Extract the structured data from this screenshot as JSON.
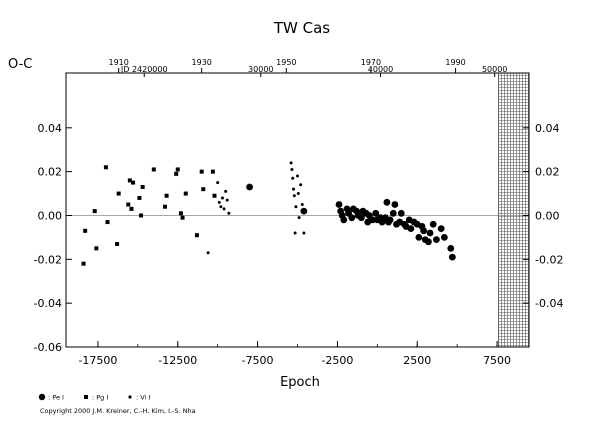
{
  "chart_data": {
    "type": "scatter",
    "title": "TW Cas",
    "ylabel": "O-C",
    "xlabel": "Epoch",
    "xlim": [
      -19500,
      9500
    ],
    "ylim": [
      -0.06,
      0.065
    ],
    "right_ylim": [
      -0.04,
      0.04
    ],
    "x_ticks": [
      -17500,
      -12500,
      -7500,
      -2500,
      2500,
      7500
    ],
    "x_tick_labels": [
      "-17500",
      "-12500",
      "-7500",
      "-2500",
      "2500",
      "7500"
    ],
    "y_ticks": [
      -0.06,
      -0.04,
      -0.02,
      0.0,
      0.02,
      0.04
    ],
    "y_tick_labels": [
      "-0.06",
      "-0.04",
      "-0.02",
      "0.00",
      "0.02",
      "0.04"
    ],
    "right_y_ticks": [
      -0.04,
      -0.02,
      0.0,
      0.02,
      0.04
    ],
    "right_y_tick_labels": [
      "-0.04",
      "-0.02",
      "0.00",
      "0.02",
      "0.04"
    ],
    "top_year_ticks": [
      {
        "label": "1910",
        "epoch": -16200
      },
      {
        "label": "1930",
        "epoch": -11000
      },
      {
        "label": "1950",
        "epoch": -5700
      },
      {
        "label": "1970",
        "epoch": -400
      },
      {
        "label": "1990",
        "epoch": 4900
      }
    ],
    "jd_labels": [
      {
        "label": "JD 2420000",
        "epoch": -14600
      },
      {
        "label": "30000",
        "epoch": -7300
      },
      {
        "label": "40000",
        "epoch": 200
      },
      {
        "label": "50000",
        "epoch": 7350
      }
    ],
    "hatched_from_epoch": 7600,
    "zero_line": 0.0,
    "series": [
      {
        "name": "Pe",
        "marker": "circle-large",
        "points": [
          [
            -8000,
            0.013
          ],
          [
            -4600,
            0.002
          ],
          [
            -2400,
            0.005
          ],
          [
            -2300,
            0.002
          ],
          [
            -2200,
            0.0
          ],
          [
            -2100,
            -0.002
          ],
          [
            -1900,
            0.003
          ],
          [
            -1800,
            0.001
          ],
          [
            -1600,
            -0.001
          ],
          [
            -1500,
            0.003
          ],
          [
            -1300,
            0.002
          ],
          [
            -1200,
            0.0
          ],
          [
            -1000,
            -0.001
          ],
          [
            -900,
            0.002
          ],
          [
            -700,
            0.001
          ],
          [
            -600,
            -0.003
          ],
          [
            -500,
            0.0
          ],
          [
            -300,
            -0.002
          ],
          [
            -100,
            0.001
          ],
          [
            0,
            -0.002
          ],
          [
            200,
            -0.001
          ],
          [
            300,
            -0.003
          ],
          [
            500,
            -0.001
          ],
          [
            600,
            0.006
          ],
          [
            700,
            -0.003
          ],
          [
            800,
            -0.002
          ],
          [
            1000,
            0.001
          ],
          [
            1100,
            0.005
          ],
          [
            1200,
            -0.004
          ],
          [
            1400,
            -0.003
          ],
          [
            1500,
            0.001
          ],
          [
            1700,
            -0.004
          ],
          [
            1800,
            -0.005
          ],
          [
            2000,
            -0.002
          ],
          [
            2100,
            -0.006
          ],
          [
            2300,
            -0.003
          ],
          [
            2500,
            -0.004
          ],
          [
            2600,
            -0.01
          ],
          [
            2800,
            -0.005
          ],
          [
            2900,
            -0.007
          ],
          [
            3000,
            -0.011
          ],
          [
            3200,
            -0.012
          ],
          [
            3300,
            -0.008
          ],
          [
            3500,
            -0.004
          ],
          [
            3700,
            -0.011
          ],
          [
            4000,
            -0.006
          ],
          [
            4200,
            -0.01
          ],
          [
            4600,
            -0.015
          ],
          [
            4700,
            -0.019
          ]
        ]
      },
      {
        "name": "Pg",
        "marker": "square",
        "points": [
          [
            -18400,
            -0.022
          ],
          [
            -18300,
            -0.007
          ],
          [
            -17700,
            0.002
          ],
          [
            -17600,
            -0.015
          ],
          [
            -17000,
            0.022
          ],
          [
            -16900,
            -0.003
          ],
          [
            -16300,
            -0.013
          ],
          [
            -16200,
            0.01
          ],
          [
            -15600,
            0.005
          ],
          [
            -15500,
            0.016
          ],
          [
            -15400,
            0.003
          ],
          [
            -15300,
            0.015
          ],
          [
            -14900,
            0.008
          ],
          [
            -14800,
            0.0
          ],
          [
            -14700,
            0.013
          ],
          [
            -14000,
            0.021
          ],
          [
            -13300,
            0.004
          ],
          [
            -13200,
            0.009
          ],
          [
            -12600,
            0.019
          ],
          [
            -12500,
            0.021
          ],
          [
            -12300,
            0.001
          ],
          [
            -12200,
            -0.001
          ],
          [
            -12000,
            0.01
          ],
          [
            -11300,
            -0.009
          ],
          [
            -11000,
            0.02
          ],
          [
            -10900,
            0.012
          ],
          [
            -10300,
            0.02
          ],
          [
            -10200,
            0.009
          ]
        ]
      },
      {
        "name": "Vi",
        "marker": "dot",
        "points": [
          [
            -10600,
            -0.017
          ],
          [
            -10000,
            0.015
          ],
          [
            -9900,
            0.006
          ],
          [
            -9800,
            0.004
          ],
          [
            -9700,
            0.008
          ],
          [
            -9600,
            0.003
          ],
          [
            -9500,
            0.011
          ],
          [
            -9400,
            0.007
          ],
          [
            -9300,
            0.001
          ],
          [
            -5400,
            0.024
          ],
          [
            -5350,
            0.021
          ],
          [
            -5300,
            0.017
          ],
          [
            -5250,
            0.012
          ],
          [
            -5200,
            0.009
          ],
          [
            -5150,
            -0.008
          ],
          [
            -5100,
            0.004
          ],
          [
            -5000,
            0.018
          ],
          [
            -4950,
            0.01
          ],
          [
            -4900,
            -0.001
          ],
          [
            -4800,
            0.014
          ],
          [
            -4700,
            0.005
          ],
          [
            -4600,
            -0.008
          ]
        ]
      }
    ],
    "legend": [
      {
        "marker": "circle-large",
        "label": ": Pe I"
      },
      {
        "marker": "square",
        "label": ": Pg I"
      },
      {
        "marker": "dot",
        "label": ": Vi I"
      }
    ],
    "legend_position": "bottom-left"
  },
  "footer": {
    "copyright": "Copyright 2000 J.M. Kreiner, C.-H. Kim, I.-S. Nha"
  }
}
